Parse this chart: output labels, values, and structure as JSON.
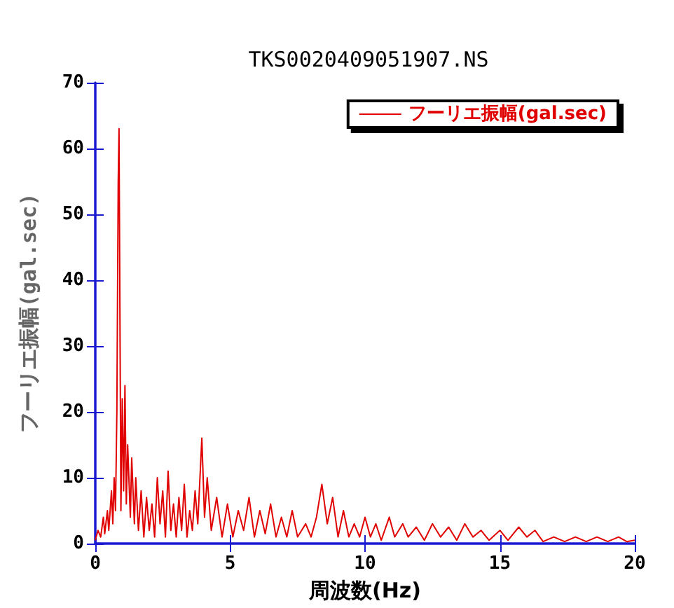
{
  "chart_data": {
    "type": "line",
    "title": "TKS0020409051907.NS",
    "xlabel": "周波数(Hz)",
    "ylabel": "フーリエ振幅(gal.sec)",
    "xlim": [
      0,
      20
    ],
    "xticks": [
      0,
      5,
      10,
      15,
      20
    ],
    "ylim": [
      0,
      70
    ],
    "yticks": [
      0,
      10,
      20,
      30,
      40,
      50,
      60,
      70
    ],
    "grid": false,
    "legend": "top right",
    "marker": "none",
    "line_style": "solid",
    "x": [
      0,
      0.1,
      0.2,
      0.3,
      0.35,
      0.45,
      0.5,
      0.6,
      0.65,
      0.7,
      0.75,
      0.8,
      0.85,
      0.88,
      0.92,
      0.95,
      1.0,
      1.05,
      1.1,
      1.15,
      1.2,
      1.3,
      1.35,
      1.45,
      1.5,
      1.6,
      1.7,
      1.8,
      1.9,
      2.0,
      2.1,
      2.2,
      2.3,
      2.4,
      2.5,
      2.6,
      2.7,
      2.8,
      2.9,
      3.0,
      3.1,
      3.2,
      3.3,
      3.4,
      3.5,
      3.6,
      3.7,
      3.8,
      3.95,
      4.05,
      4.15,
      4.3,
      4.5,
      4.7,
      4.9,
      5.1,
      5.3,
      5.5,
      5.7,
      5.9,
      6.1,
      6.3,
      6.5,
      6.7,
      6.9,
      7.1,
      7.3,
      7.5,
      7.8,
      8.0,
      8.2,
      8.4,
      8.6,
      8.8,
      9.0,
      9.2,
      9.4,
      9.6,
      9.8,
      10.0,
      10.2,
      10.4,
      10.6,
      10.9,
      11.1,
      11.4,
      11.6,
      11.9,
      12.2,
      12.5,
      12.8,
      13.1,
      13.4,
      13.7,
      14.0,
      14.3,
      14.6,
      15.0,
      15.3,
      15.7,
      16.0,
      16.3,
      16.6,
      17.0,
      17.4,
      17.8,
      18.2,
      18.6,
      19.0,
      19.4,
      19.7,
      20.0
    ],
    "series": [
      {
        "name": "フーリエ振幅(gal.sec)",
        "color": "#e00000",
        "values": [
          0.5,
          2,
          1,
          4,
          1.5,
          5,
          2,
          8,
          3,
          10,
          5,
          20,
          55,
          63,
          30,
          5,
          22,
          8,
          24,
          6,
          15,
          4,
          13,
          3,
          10,
          2,
          8,
          1,
          7,
          2,
          6,
          1,
          10,
          3,
          8,
          1,
          11,
          2,
          6,
          1,
          7,
          2,
          9,
          1,
          5,
          2,
          8,
          3,
          16,
          4,
          10,
          2,
          7,
          1,
          6,
          1,
          5,
          2,
          7,
          1,
          5,
          1.5,
          6,
          1,
          4,
          1,
          5,
          1,
          3,
          1,
          4,
          9,
          3,
          7,
          1,
          5,
          1,
          3,
          1,
          4,
          1,
          3,
          0.5,
          4,
          1,
          3,
          1,
          2.5,
          0.5,
          3,
          1,
          2.5,
          0.5,
          3,
          1,
          2,
          0.5,
          2,
          0.5,
          2.5,
          1,
          2,
          0.3,
          1,
          0.3,
          1,
          0.3,
          1,
          0.3,
          1,
          0.3,
          0.5
        ]
      }
    ]
  }
}
